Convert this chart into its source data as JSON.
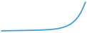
{
  "values": [
    8000,
    8100,
    8150,
    8200,
    8250,
    8300,
    8350,
    8400,
    8500,
    8550,
    8600,
    8700,
    8750,
    8800,
    8900,
    9000,
    9100,
    9250,
    9400,
    9600,
    9900,
    10200,
    10600,
    11100,
    11800,
    12700,
    13800,
    15200,
    17000,
    19500,
    22500,
    26500,
    31500,
    38000,
    46000
  ],
  "line_color": "#3fa0d0",
  "line_width": 1.3,
  "background_color": "#ffffff"
}
